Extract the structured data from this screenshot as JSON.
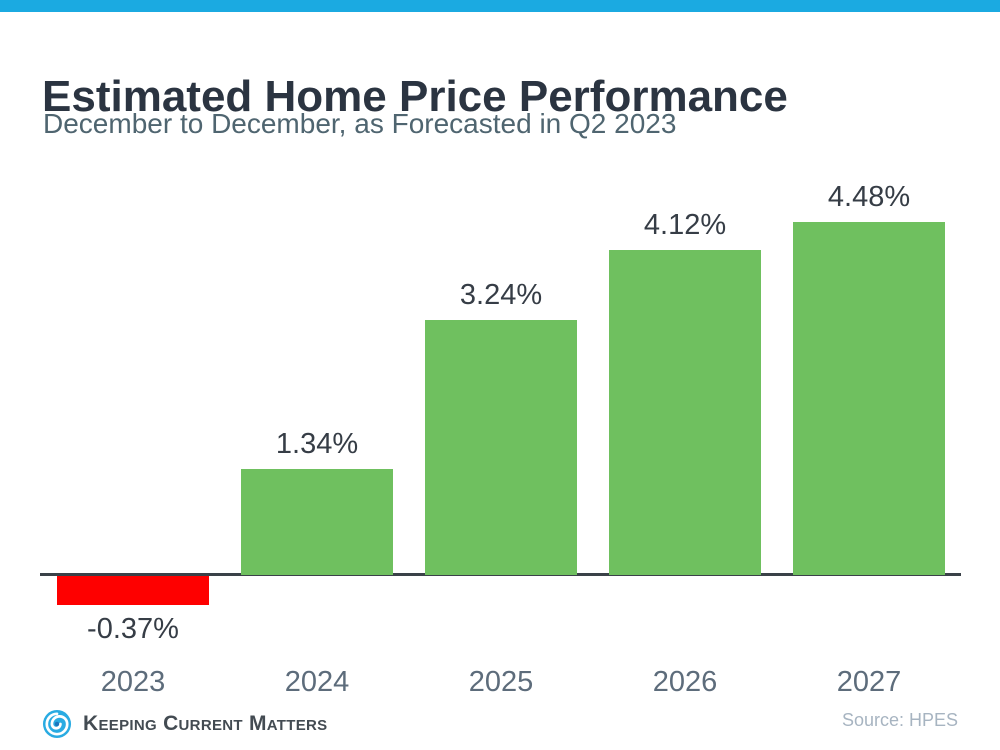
{
  "header": {
    "title": "Estimated Home Price Performance",
    "subtitle": "December to December, as Forecasted in Q2 2023"
  },
  "chart_data": {
    "type": "bar",
    "categories": [
      "2023",
      "2024",
      "2025",
      "2026",
      "2027"
    ],
    "values": [
      -0.37,
      1.34,
      3.24,
      4.12,
      4.48
    ],
    "value_labels": [
      "-0.37%",
      "1.34%",
      "3.24%",
      "4.12%",
      "4.48%"
    ],
    "title": "Estimated Home Price Performance",
    "subtitle": "December to December, as Forecasted in Q2 2023",
    "xlabel": "",
    "ylabel": "",
    "ylim": [
      -1,
      5
    ],
    "grid": false,
    "legend": false,
    "bar_color_positive": "#6FC05F",
    "bar_color_negative": "#FE0000",
    "source": "Source: HPES"
  },
  "footer": {
    "logo_text": "Keeping Current Matters",
    "source": "Source: HPES"
  },
  "colors": {
    "top_bar": "#1BAAE1",
    "title_text": "#2B3441",
    "subtitle_text": "#4F6570",
    "axis_line": "#3A4148",
    "value_label_text": "#363D46",
    "year_label_text": "#5D6C7B",
    "source_text": "#A7B4C1",
    "logo_text": "#434B52",
    "logo_blue": "#29ABE2",
    "logo_dark_blue": "#1B75BC"
  }
}
